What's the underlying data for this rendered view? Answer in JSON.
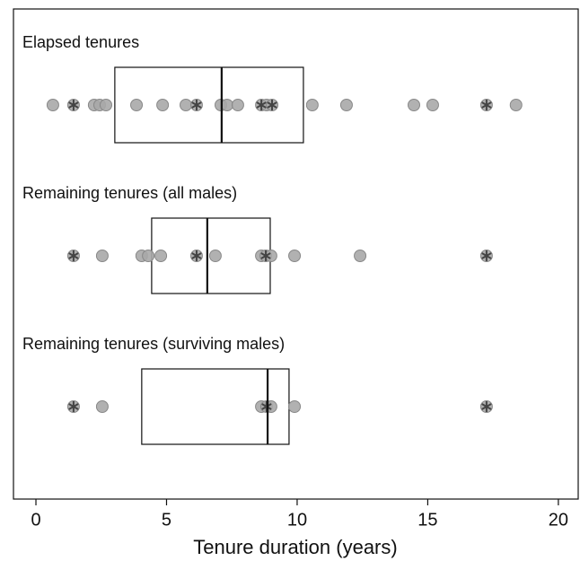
{
  "chart_data": {
    "type": "box",
    "xlabel": "Tenure duration (years)",
    "xlim": [
      -0.86,
      20.76
    ],
    "xticks": [
      0,
      5,
      10,
      15,
      20
    ],
    "point_color": "#a9a9a9",
    "star_color": "#444444",
    "groups": [
      {
        "name": "Elapsed tenures",
        "q1": 3.02,
        "median": 7.11,
        "q3": 10.24,
        "values": [
          0.65,
          1.44,
          2.23,
          2.44,
          2.68,
          3.85,
          4.85,
          5.74,
          6.15,
          7.08,
          7.32,
          7.73,
          8.63,
          8.83,
          9.04,
          10.58,
          11.89,
          14.47,
          15.19,
          17.25,
          18.38
        ],
        "starred_values": [
          1.44,
          6.15,
          8.63,
          9.04,
          17.25
        ]
      },
      {
        "name": "Remaining tenures (all males)",
        "q1": 4.43,
        "median": 6.56,
        "q3": 8.97,
        "values": [
          1.44,
          2.54,
          4.05,
          4.3,
          4.78,
          6.15,
          6.87,
          8.63,
          8.8,
          9.0,
          9.9,
          12.41,
          17.25
        ],
        "starred_values": [
          1.44,
          6.15,
          8.8,
          17.25
        ]
      },
      {
        "name": "Remaining tenures (surviving males)",
        "q1": 4.05,
        "median": 8.87,
        "q3": 9.69,
        "values": [
          1.44,
          2.54,
          8.63,
          8.83,
          9.0,
          9.9,
          17.25
        ],
        "starred_values": [
          1.44,
          8.83,
          17.25
        ]
      }
    ]
  }
}
